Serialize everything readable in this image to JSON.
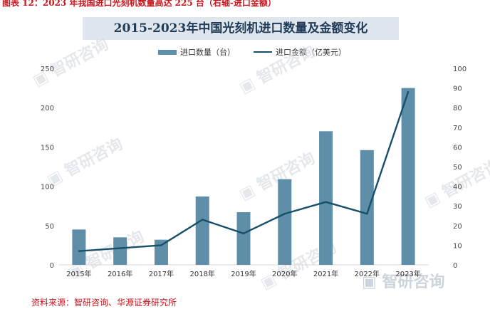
{
  "header": "图表 12：2023 年我国进口光刻机数量高达 225 台（右轴-进口金额）",
  "footer": "资料来源：智研咨询、华源证券研究所",
  "watermark": "智研咨询",
  "colors": {
    "bar": "#5f8ea8",
    "line": "#17506b",
    "header_red": "#c8161d",
    "title_bg": "#dfe6ee"
  },
  "chart_data": {
    "type": "bar",
    "title": "2015-2023年中国光刻机进口数量及金额变化",
    "categories": [
      "2015年",
      "2016年",
      "2017年",
      "2018年",
      "2019年",
      "2020年",
      "2021年",
      "2022年",
      "2023年"
    ],
    "series": [
      {
        "name": "进口数量（台）",
        "type": "bar",
        "axis": "left",
        "values": [
          45,
          35,
          32,
          87,
          67,
          109,
          170,
          146,
          225
        ]
      },
      {
        "name": "进口金额（亿美元）",
        "type": "line",
        "axis": "right",
        "values": [
          7,
          8.5,
          10,
          23,
          16,
          26,
          32,
          26,
          88
        ]
      }
    ],
    "ylim_left": [
      0,
      250
    ],
    "yticks_left": [
      0,
      50,
      100,
      150,
      200,
      250
    ],
    "ylim_right": [
      0,
      100
    ],
    "yticks_right": [
      0,
      10,
      20,
      30,
      40,
      50,
      60,
      70,
      80,
      90,
      100
    ],
    "grid": false,
    "legend_position": "top"
  }
}
